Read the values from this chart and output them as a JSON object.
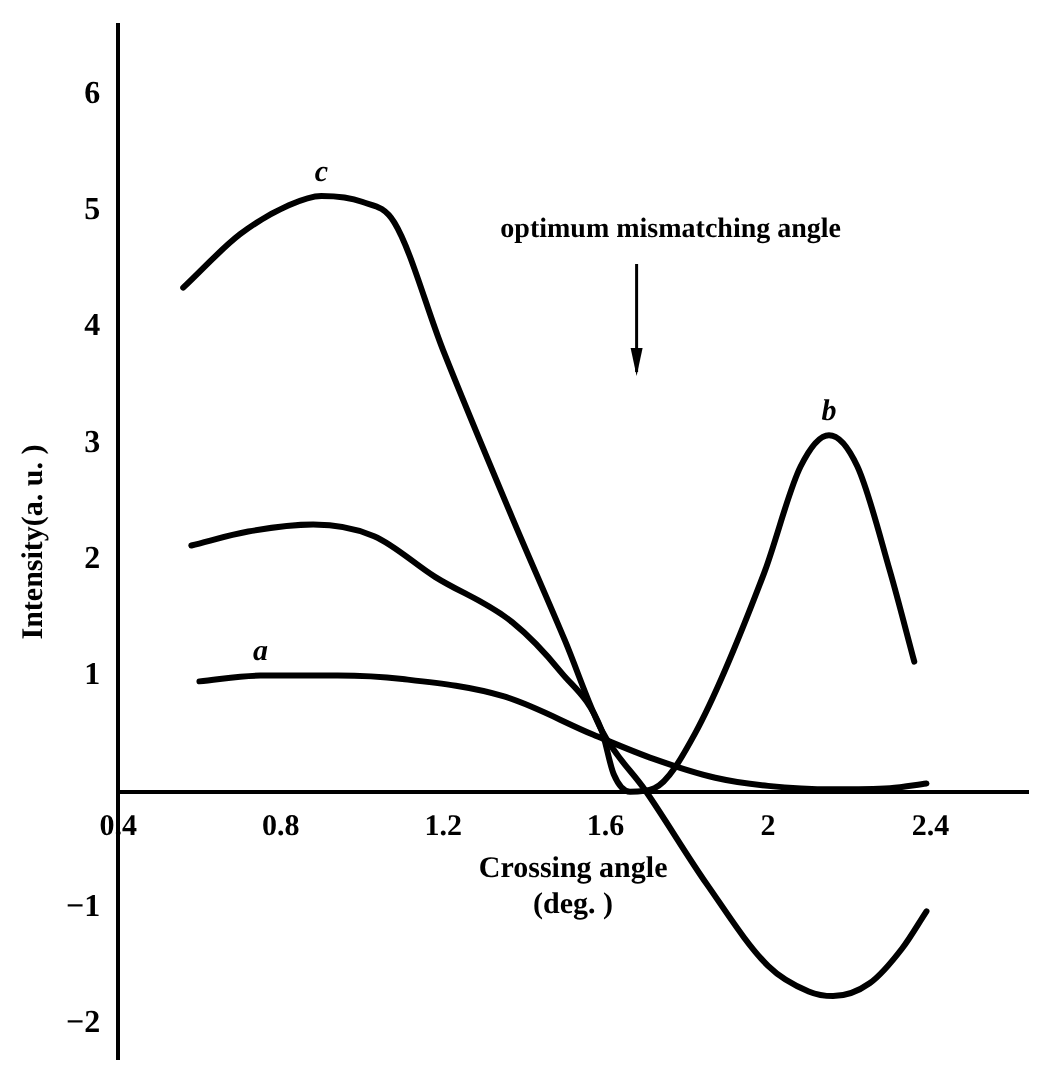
{
  "chart_data": {
    "type": "line",
    "xlabel": "Crossing angle (deg. )",
    "ylabel": "Intensity(a. u. )",
    "xlim": [
      0.4,
      2.64
    ],
    "ylim": [
      -2.3,
      6.6
    ],
    "xticks": [
      0.4,
      0.8,
      1.2,
      1.6,
      2.0,
      2.4
    ],
    "yticks": [
      -2,
      -1,
      1,
      2,
      3,
      4,
      5,
      6
    ],
    "grid": false,
    "legend": false,
    "marker": "none",
    "line_style": "solid",
    "annotations": [
      "optimum mismatching angle"
    ],
    "series": [
      {
        "name": "a",
        "color": "#000000",
        "x": [
          0.6,
          0.75,
          0.94,
          1.1,
          1.35,
          1.57,
          1.72,
          1.87,
          2.0,
          2.16,
          2.3,
          2.39
        ],
        "values": [
          0.95,
          1.0,
          1.0,
          0.97,
          0.82,
          0.49,
          0.28,
          0.12,
          0.05,
          0.02,
          0.03,
          0.07
        ]
      },
      {
        "name": "b",
        "color": "#000000",
        "x": [
          0.58,
          0.72,
          0.88,
          1.03,
          1.18,
          1.37,
          1.49,
          1.59,
          1.62,
          1.66,
          1.72,
          1.82,
          1.99,
          2.08,
          2.15,
          2.22,
          2.3,
          2.36
        ],
        "values": [
          2.12,
          2.24,
          2.3,
          2.2,
          1.85,
          1.46,
          1.03,
          0.53,
          0.15,
          0.0,
          0.03,
          0.5,
          1.88,
          2.8,
          3.07,
          2.8,
          1.9,
          1.12
        ]
      },
      {
        "name": "c",
        "color": "#000000",
        "x": [
          0.56,
          0.7,
          0.82,
          0.9,
          1.0,
          1.08,
          1.2,
          1.37,
          1.5,
          1.59,
          1.7,
          1.85,
          2.0,
          2.1,
          2.16,
          2.25,
          2.33,
          2.39
        ],
        "values": [
          4.34,
          4.8,
          5.05,
          5.13,
          5.08,
          4.9,
          3.8,
          2.36,
          1.3,
          0.53,
          0.0,
          -0.8,
          -1.5,
          -1.72,
          -1.76,
          -1.65,
          -1.35,
          -1.03
        ]
      }
    ]
  }
}
